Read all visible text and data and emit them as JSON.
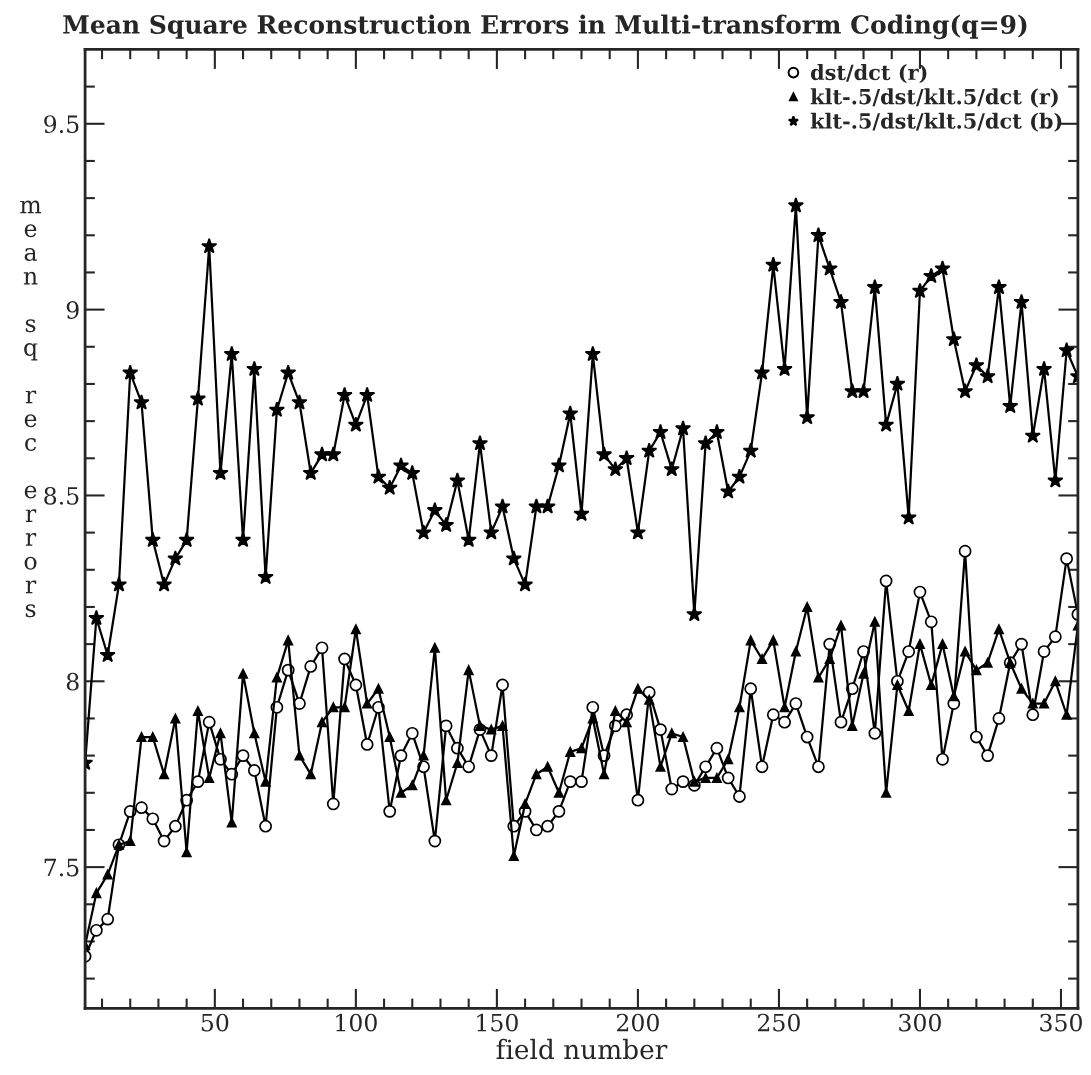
{
  "chart_data": {
    "type": "line",
    "title": "Mean Square Reconstruction Errors in Multi-transform Coding(q=9)",
    "xlabel": "field number",
    "ylabel": "mean sq rec errors",
    "x": [
      4,
      8,
      12,
      16,
      20,
      24,
      28,
      32,
      36,
      40,
      44,
      48,
      52,
      56,
      60,
      64,
      68,
      72,
      76,
      80,
      84,
      88,
      92,
      96,
      100,
      104,
      108,
      112,
      116,
      120,
      124,
      128,
      132,
      136,
      140,
      144,
      148,
      152,
      156,
      160,
      164,
      168,
      172,
      176,
      180,
      184,
      188,
      192,
      196,
      200,
      204,
      208,
      212,
      216,
      220,
      224,
      228,
      232,
      236,
      240,
      244,
      248,
      252,
      256,
      260,
      264,
      268,
      272,
      276,
      280,
      284,
      288,
      292,
      296,
      300,
      304,
      308,
      312,
      316,
      320,
      324,
      328,
      332,
      336,
      340,
      344,
      348,
      352,
      356
    ],
    "series": [
      {
        "name": "dst/dct (r)",
        "color": "#000000",
        "marker": "circle",
        "values": [
          7.26,
          7.33,
          7.36,
          7.56,
          7.65,
          7.66,
          7.63,
          7.57,
          7.61,
          7.68,
          7.73,
          7.89,
          7.79,
          7.75,
          7.8,
          7.76,
          7.61,
          7.93,
          8.03,
          7.94,
          8.04,
          8.09,
          7.67,
          8.06,
          7.99,
          7.83,
          7.93,
          7.65,
          7.8,
          7.86,
          7.77,
          7.57,
          7.88,
          7.82,
          7.77,
          7.87,
          7.8,
          7.99,
          7.61,
          7.65,
          7.6,
          7.61,
          7.65,
          7.73,
          7.73,
          7.93,
          7.8,
          7.88,
          7.91,
          7.68,
          7.97,
          7.87,
          7.71,
          7.73,
          7.72,
          7.77,
          7.82,
          7.74,
          7.69,
          7.98,
          7.77,
          7.91,
          7.89,
          7.94,
          7.85,
          7.77,
          8.1,
          7.89,
          7.98,
          8.08,
          7.86,
          8.27,
          8.0,
          8.08,
          8.24,
          8.16,
          7.79,
          7.94,
          8.35,
          7.85,
          7.8,
          7.9,
          8.05,
          8.1,
          7.91,
          8.08,
          8.12,
          8.33,
          8.18
        ]
      },
      {
        "name": "klt-.5/dst/klt.5/dct (r)",
        "color": "#000000",
        "marker": "triangle",
        "values": [
          7.29,
          7.43,
          7.48,
          7.56,
          7.57,
          7.85,
          7.85,
          7.75,
          7.9,
          7.54,
          7.92,
          7.74,
          7.86,
          7.62,
          8.02,
          7.86,
          7.73,
          8.01,
          8.11,
          7.8,
          7.75,
          7.89,
          7.93,
          7.93,
          8.14,
          7.94,
          7.98,
          7.85,
          7.7,
          7.72,
          7.8,
          8.09,
          7.68,
          7.78,
          8.03,
          7.88,
          7.87,
          7.88,
          7.53,
          7.67,
          7.75,
          7.77,
          7.7,
          7.81,
          7.82,
          7.9,
          7.75,
          7.92,
          7.89,
          7.98,
          7.95,
          7.77,
          7.86,
          7.85,
          7.73,
          7.74,
          7.74,
          7.79,
          7.93,
          8.11,
          8.06,
          8.11,
          7.93,
          8.08,
          8.2,
          8.01,
          8.06,
          8.15,
          7.88,
          8.02,
          8.16,
          7.7,
          7.99,
          7.92,
          8.1,
          7.99,
          8.1,
          7.96,
          8.08,
          8.03,
          8.05,
          8.14,
          8.05,
          7.98,
          7.94,
          7.94,
          8.0,
          7.91,
          8.15
        ]
      },
      {
        "name": "klt-.5/dst/klt.5/dct (b)",
        "color": "#000000",
        "marker": "star",
        "values": [
          7.78,
          8.17,
          8.07,
          8.26,
          8.83,
          8.75,
          8.38,
          8.26,
          8.33,
          8.38,
          8.76,
          9.17,
          8.56,
          8.88,
          8.38,
          8.84,
          8.28,
          8.73,
          8.83,
          8.75,
          8.56,
          8.61,
          8.61,
          8.77,
          8.69,
          8.77,
          8.55,
          8.52,
          8.58,
          8.56,
          8.4,
          8.46,
          8.42,
          8.54,
          8.38,
          8.64,
          8.4,
          8.47,
          8.33,
          8.26,
          8.47,
          8.47,
          8.58,
          8.72,
          8.45,
          8.88,
          8.61,
          8.57,
          8.6,
          8.4,
          8.62,
          8.67,
          8.57,
          8.68,
          8.18,
          8.64,
          8.67,
          8.51,
          8.55,
          8.62,
          8.83,
          9.12,
          8.84,
          9.28,
          8.71,
          9.2,
          9.11,
          9.02,
          8.78,
          8.78,
          9.06,
          8.69,
          8.8,
          8.44,
          9.05,
          9.09,
          9.11,
          8.92,
          8.78,
          8.85,
          8.82,
          9.06,
          8.74,
          9.02,
          8.66,
          8.84,
          8.54,
          8.89,
          8.82
        ]
      }
    ],
    "xlim": [
      4,
      356
    ],
    "ylim": [
      7.12,
      9.7
    ],
    "xticks": [
      {
        "value": 10,
        "label": null
      },
      {
        "value": 20,
        "label": null
      },
      {
        "value": 30,
        "label": null
      },
      {
        "value": 40,
        "label": null
      },
      50,
      {
        "value": 60,
        "label": null
      },
      {
        "value": 70,
        "label": null
      },
      {
        "value": 80,
        "label": null
      },
      {
        "value": 90,
        "label": null
      },
      100,
      {
        "value": 110,
        "label": null
      },
      {
        "value": 120,
        "label": null
      },
      {
        "value": 130,
        "label": null
      },
      {
        "value": 140,
        "label": null
      },
      150,
      {
        "value": 160,
        "label": null
      },
      {
        "value": 170,
        "label": null
      },
      {
        "value": 180,
        "label": null
      },
      {
        "value": 190,
        "label": null
      },
      200,
      {
        "value": 210,
        "label": null
      },
      {
        "value": 220,
        "label": null
      },
      {
        "value": 230,
        "label": null
      },
      {
        "value": 240,
        "label": null
      },
      250,
      {
        "value": 260,
        "label": null
      },
      {
        "value": 270,
        "label": null
      },
      {
        "value": 280,
        "label": null
      },
      {
        "value": 290,
        "label": null
      },
      300,
      {
        "value": 310,
        "label": null
      },
      {
        "value": 320,
        "label": null
      },
      {
        "value": 330,
        "label": null
      },
      {
        "value": 340,
        "label": null
      },
      350
    ],
    "yticks": [
      {
        "value": 7.2,
        "label": null
      },
      {
        "value": 7.3,
        "label": null
      },
      {
        "value": 7.4,
        "label": null
      },
      7.5,
      {
        "value": 7.6,
        "label": null
      },
      {
        "value": 7.7,
        "label": null
      },
      {
        "value": 7.8,
        "label": null
      },
      {
        "value": 7.9,
        "label": null
      },
      8,
      {
        "value": 8.1,
        "label": null
      },
      {
        "value": 8.2,
        "label": null
      },
      {
        "value": 8.3,
        "label": null
      },
      {
        "value": 8.4,
        "label": null
      },
      8.5,
      {
        "value": 8.6,
        "label": null
      },
      {
        "value": 8.7,
        "label": null
      },
      {
        "value": 8.8,
        "label": null
      },
      {
        "value": 8.9,
        "label": null
      },
      9,
      {
        "value": 9.1,
        "label": null
      },
      {
        "value": 9.2,
        "label": null
      },
      {
        "value": 9.3,
        "label": null
      },
      {
        "value": 9.4,
        "label": null
      },
      9.5,
      {
        "value": 9.6,
        "label": null
      }
    ],
    "grid": false,
    "legend": "top right",
    "line_style": "solid"
  }
}
